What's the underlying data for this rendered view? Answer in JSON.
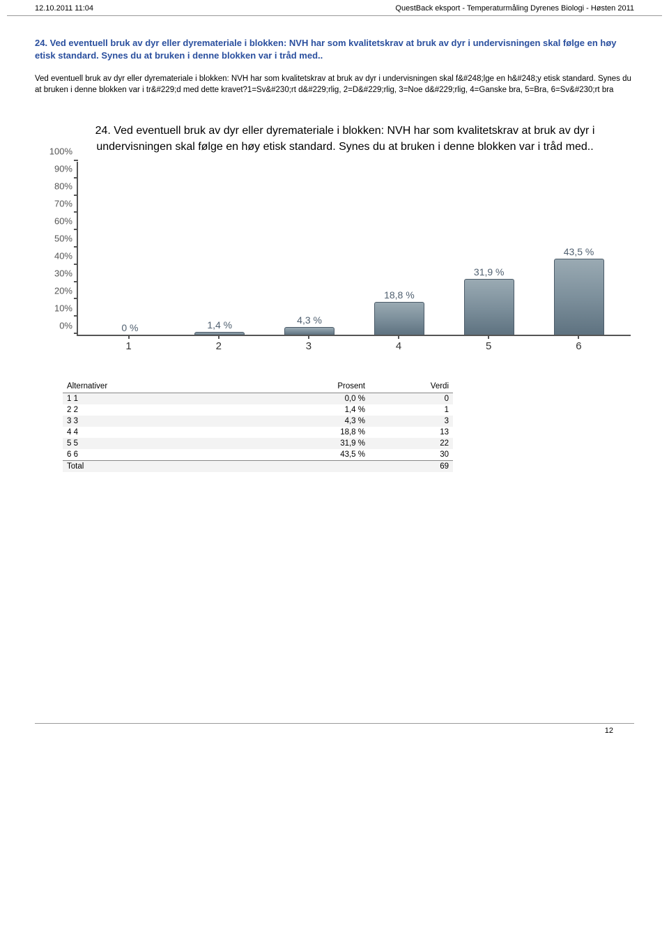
{
  "header": {
    "left": "12.10.2011 11:04",
    "right": "QuestBack eksport - Temperaturmåling Dyrenes Biologi - Høsten 2011"
  },
  "title_blue": "24. Ved eventuell bruk av dyr eller dyremateriale i blokken: NVH har som kvalitetskrav at bruk av dyr i undervisningen skal følge en høy etisk standard. Synes du at bruken i denne blokken var i tråd med..",
  "subtitle_black": "Ved eventuell bruk av dyr eller dyremateriale i blokken: NVH har som kvalitetskrav at bruk av dyr i undervisningen skal f&#248;lge en h&#248;y etisk standard. Synes du at bruken i denne blokken var i tr&#229;d med dette kravet?1=Sv&#230;rt d&#229;rlig, 2=D&#229;rlig, 3=Noe d&#229;rlig, 4=Ganske bra, 5=Bra, 6=Sv&#230;rt bra",
  "chart": {
    "type": "bar",
    "title": "24. Ved eventuell bruk av dyr eller dyremateriale i blokken: NVH har som kvalitetskrav at bruk av dyr i undervisningen skal følge en høy etisk standard. Synes du at bruken i denne blokken var i tråd med..",
    "categories": [
      "1",
      "2",
      "3",
      "4",
      "5",
      "6"
    ],
    "values": [
      0,
      1.4,
      4.3,
      18.8,
      31.9,
      43.5
    ],
    "value_labels": [
      "0 %",
      "1,4 %",
      "4,3 %",
      "18,8 %",
      "31,9 %",
      "43,5 %"
    ],
    "y_ticks": [
      "0%",
      "10%",
      "20%",
      "30%",
      "40%",
      "50%",
      "60%",
      "70%",
      "80%",
      "90%",
      "100%"
    ],
    "ylim_max": 100,
    "bar_fill_top": "#9aaab3",
    "bar_fill_bottom": "#5e7280",
    "bar_border": "#4a5a68",
    "axis_color": "#555555",
    "label_color": "#506070",
    "background_color": "#ffffff",
    "title_fontsize": 16,
    "axis_fontsize": 13
  },
  "table": {
    "headers": [
      "Alternativer",
      "Prosent",
      "Verdi"
    ],
    "rows": [
      {
        "alt": "1 1",
        "prosent": "0,0 %",
        "verdi": "0"
      },
      {
        "alt": "2 2",
        "prosent": "1,4 %",
        "verdi": "1"
      },
      {
        "alt": "3 3",
        "prosent": "4,3 %",
        "verdi": "3"
      },
      {
        "alt": "4 4",
        "prosent": "18,8 %",
        "verdi": "13"
      },
      {
        "alt": "5 5",
        "prosent": "31,9 %",
        "verdi": "22"
      },
      {
        "alt": "6 6",
        "prosent": "43,5 %",
        "verdi": "30"
      }
    ],
    "total": {
      "alt": "Total",
      "prosent": "",
      "verdi": "69"
    }
  },
  "page_number": "12"
}
